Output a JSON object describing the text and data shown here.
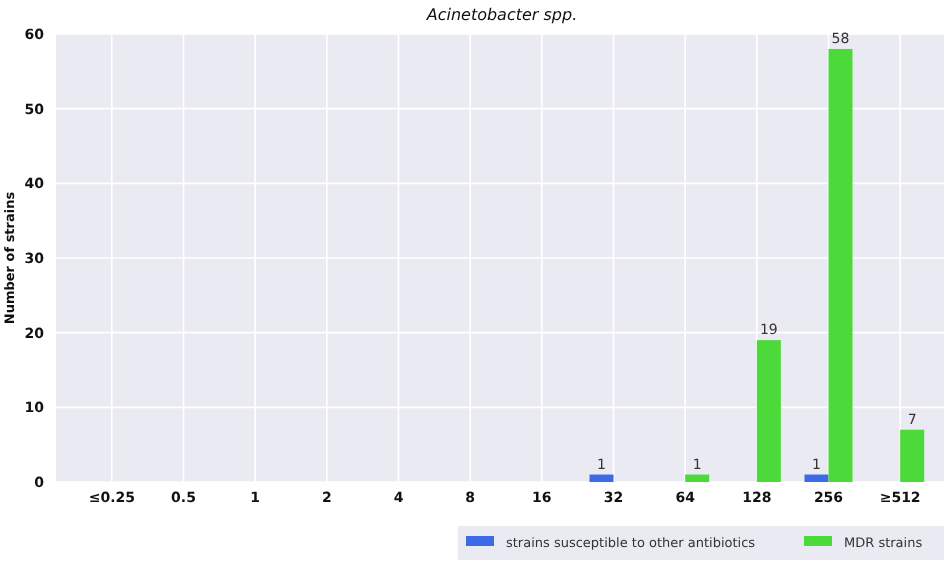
{
  "chart_data": {
    "type": "bar",
    "title": "Acinetobacter spp.",
    "ylabel": "Number of strains",
    "categories": [
      "≤0.25",
      "0.5",
      "1",
      "2",
      "4",
      "8",
      "16",
      "32",
      "64",
      "128",
      "256",
      "≥512"
    ],
    "series": [
      {
        "name": "strains susceptible to other antibiotics",
        "color": "#3d6be8",
        "values": [
          0,
          0,
          0,
          0,
          0,
          0,
          0,
          1,
          0,
          0,
          1,
          0
        ],
        "value_labels": [
          null,
          null,
          null,
          null,
          null,
          null,
          null,
          "1",
          null,
          null,
          "1",
          null
        ]
      },
      {
        "name": "MDR strains",
        "color": "#4cd93a",
        "values": [
          0,
          0,
          0,
          0,
          0,
          0,
          0,
          0,
          1,
          19,
          58,
          7
        ],
        "value_labels": [
          null,
          null,
          null,
          null,
          null,
          null,
          null,
          null,
          "1",
          "19",
          "58",
          "7"
        ]
      }
    ],
    "ylim": [
      0,
      60
    ],
    "yticks": [
      0,
      10,
      20,
      30,
      40,
      50,
      60
    ],
    "grid": true,
    "legend": "bottom right"
  }
}
